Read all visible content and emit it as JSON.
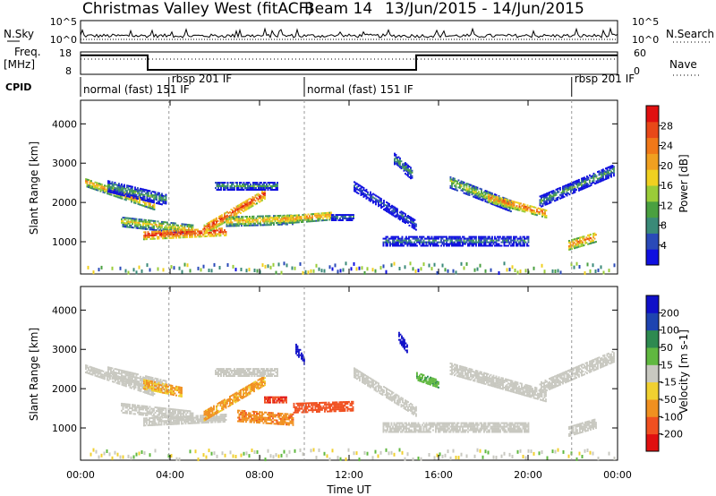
{
  "header": {
    "station": "Christmas Valley West (fitACF)",
    "beam": "Beam 14",
    "dates": "13/Jun/2015 - 14/Jun/2015"
  },
  "top_panels": {
    "nsky_label": "N.Sky",
    "nsky_ticks": [
      "10^5",
      "10^0"
    ],
    "nsearch_label": "N.Search",
    "nsearch_ticks": [
      "10^5",
      "10^0"
    ],
    "freq_label": "Freq.",
    "freq_unit": "[MHz]",
    "freq_ticks": [
      "18",
      "8"
    ],
    "nave_label": "Nave",
    "nave_ticks": [
      "60",
      "0"
    ],
    "cpid_label": "CPID",
    "cpid_segments": [
      {
        "label": "normal (fast) 151 IF",
        "start_h": 0.0
      },
      {
        "label": "rbsp 201 IF",
        "start_h": 3.95
      },
      {
        "label": "normal (fast) 151 IF",
        "start_h": 10.0
      },
      {
        "label": "rbsp 201 IF",
        "start_h": 21.95
      }
    ],
    "freq_trace": [
      [
        0,
        16.5
      ],
      [
        3,
        16.5
      ],
      [
        3,
        10
      ],
      [
        15,
        10
      ],
      [
        15,
        16.5
      ],
      [
        24,
        16.5
      ]
    ]
  },
  "power_colorbar": {
    "title": "Power [dB]",
    "ticks": [
      "4",
      "8",
      "12",
      "16",
      "20",
      "24",
      "28"
    ],
    "colors": [
      "#1010e0",
      "#2a4ab8",
      "#3a8a78",
      "#4aa040",
      "#9acc38",
      "#f0d020",
      "#f0a020",
      "#f07818",
      "#e84818",
      "#e01010"
    ]
  },
  "velocity_colorbar": {
    "title": "Velocity [m s-1]",
    "ticks": [
      "-200",
      "-100",
      "-50",
      "-15",
      "15",
      "50",
      "100",
      "200"
    ],
    "colors": [
      "#e01010",
      "#f05020",
      "#f09020",
      "#f0d030",
      "#c8c8c0",
      "#60b840",
      "#2e8a50",
      "#1e44b0",
      "#1010c8"
    ]
  },
  "chart_data": [
    {
      "type": "heatmap",
      "title": "Power",
      "xlabel": "Time UT",
      "ylabel": "Slant Range [km]",
      "x_ticks": [
        "00:00",
        "04:00",
        "08:00",
        "12:00",
        "16:00",
        "20:00",
        "00:00"
      ],
      "y_ticks": [
        "1000",
        "2000",
        "3000",
        "4000"
      ],
      "xlim_hours": [
        0,
        24
      ],
      "ylim_km": [
        180,
        4600
      ],
      "bands": [
        {
          "t0": 0.2,
          "t1": 3.3,
          "r_start": 2500,
          "r_end": 1900,
          "width": 220,
          "value": 22
        },
        {
          "t0": 1.2,
          "t1": 3.8,
          "r_start": 2400,
          "r_end": 2050,
          "width": 300,
          "value": 12
        },
        {
          "t0": 1.8,
          "t1": 5.0,
          "r_start": 1500,
          "r_end": 1300,
          "width": 260,
          "value": 18
        },
        {
          "t0": 2.8,
          "t1": 6.5,
          "r_start": 1150,
          "r_end": 1250,
          "width": 220,
          "value": 28
        },
        {
          "t0": 5.5,
          "t1": 8.2,
          "r_start": 1300,
          "r_end": 2200,
          "width": 260,
          "value": 27
        },
        {
          "t0": 6.0,
          "t1": 8.8,
          "r_start": 2400,
          "r_end": 2400,
          "width": 200,
          "value": 12
        },
        {
          "t0": 6.5,
          "t1": 9.5,
          "r_start": 1500,
          "r_end": 1550,
          "width": 250,
          "value": 20
        },
        {
          "t0": 9.0,
          "t1": 11.2,
          "r_start": 1550,
          "r_end": 1650,
          "width": 220,
          "value": 22
        },
        {
          "t0": 11.2,
          "t1": 12.2,
          "r_start": 1600,
          "r_end": 1600,
          "width": 150,
          "value": 10
        },
        {
          "t0": 12.2,
          "t1": 15.0,
          "r_start": 2400,
          "r_end": 1400,
          "width": 260,
          "value": 8
        },
        {
          "t0": 14.0,
          "t1": 14.8,
          "r_start": 3100,
          "r_end": 2700,
          "width": 300,
          "value": 12
        },
        {
          "t0": 16.5,
          "t1": 19.2,
          "r_start": 2500,
          "r_end": 1900,
          "width": 300,
          "value": 16
        },
        {
          "t0": 18.2,
          "t1": 20.8,
          "r_start": 2100,
          "r_end": 1700,
          "width": 220,
          "value": 25
        },
        {
          "t0": 20.5,
          "t1": 23.8,
          "r_start": 2000,
          "r_end": 2800,
          "width": 280,
          "value": 12
        },
        {
          "t0": 21.8,
          "t1": 23.0,
          "r_start": 900,
          "r_end": 1100,
          "width": 250,
          "value": 24
        },
        {
          "t0": 13.5,
          "t1": 20.0,
          "r_start": 1000,
          "r_end": 1000,
          "width": 250,
          "value": 10
        }
      ]
    },
    {
      "type": "heatmap",
      "title": "Velocity",
      "xlabel": "Time UT",
      "ylabel": "Slant Range [km]",
      "x_ticks": [
        "00:00",
        "04:00",
        "08:00",
        "12:00",
        "16:00",
        "20:00",
        "00:00"
      ],
      "y_ticks": [
        "1000",
        "2000",
        "3000",
        "4000"
      ],
      "xlim_hours": [
        0,
        24
      ],
      "ylim_km": [
        180,
        4600
      ],
      "bands": [
        {
          "t0": 0.2,
          "t1": 3.3,
          "r_start": 2500,
          "r_end": 1900,
          "width": 220,
          "value": 0
        },
        {
          "t0": 1.2,
          "t1": 3.8,
          "r_start": 2400,
          "r_end": 2050,
          "width": 300,
          "value": 0
        },
        {
          "t0": 2.8,
          "t1": 4.5,
          "r_start": 2100,
          "r_end": 1900,
          "width": 250,
          "value": -50
        },
        {
          "t0": 1.8,
          "t1": 5.0,
          "r_start": 1500,
          "r_end": 1300,
          "width": 260,
          "value": 0
        },
        {
          "t0": 2.8,
          "t1": 6.5,
          "r_start": 1150,
          "r_end": 1250,
          "width": 220,
          "value": 0
        },
        {
          "t0": 5.5,
          "t1": 8.2,
          "r_start": 1300,
          "r_end": 2200,
          "width": 260,
          "value": -60
        },
        {
          "t0": 6.0,
          "t1": 8.8,
          "r_start": 2400,
          "r_end": 2400,
          "width": 200,
          "value": 0
        },
        {
          "t0": 7.0,
          "t1": 9.5,
          "r_start": 1300,
          "r_end": 1200,
          "width": 300,
          "value": -90
        },
        {
          "t0": 8.2,
          "t1": 9.2,
          "r_start": 1700,
          "r_end": 1700,
          "width": 150,
          "value": -200
        },
        {
          "t0": 9.5,
          "t1": 12.2,
          "r_start": 1500,
          "r_end": 1550,
          "width": 260,
          "value": -150
        },
        {
          "t0": 12.2,
          "t1": 15.0,
          "r_start": 2400,
          "r_end": 1400,
          "width": 260,
          "value": 0
        },
        {
          "t0": 15.0,
          "t1": 16.0,
          "r_start": 2300,
          "r_end": 2100,
          "width": 200,
          "value": 40
        },
        {
          "t0": 16.5,
          "t1": 20.8,
          "r_start": 2500,
          "r_end": 1800,
          "width": 300,
          "value": 0
        },
        {
          "t0": 20.5,
          "t1": 23.8,
          "r_start": 2000,
          "r_end": 2800,
          "width": 280,
          "value": 0
        },
        {
          "t0": 21.8,
          "t1": 23.0,
          "r_start": 900,
          "r_end": 1100,
          "width": 250,
          "value": 0
        },
        {
          "t0": 13.5,
          "t1": 20.0,
          "r_start": 1000,
          "r_end": 1000,
          "width": 250,
          "value": 0
        },
        {
          "t0": 9.6,
          "t1": 10.0,
          "r_start": 3000,
          "r_end": 2700,
          "width": 250,
          "value": 220
        },
        {
          "t0": 14.2,
          "t1": 14.6,
          "r_start": 3300,
          "r_end": 3000,
          "width": 250,
          "value": 220
        }
      ]
    }
  ]
}
